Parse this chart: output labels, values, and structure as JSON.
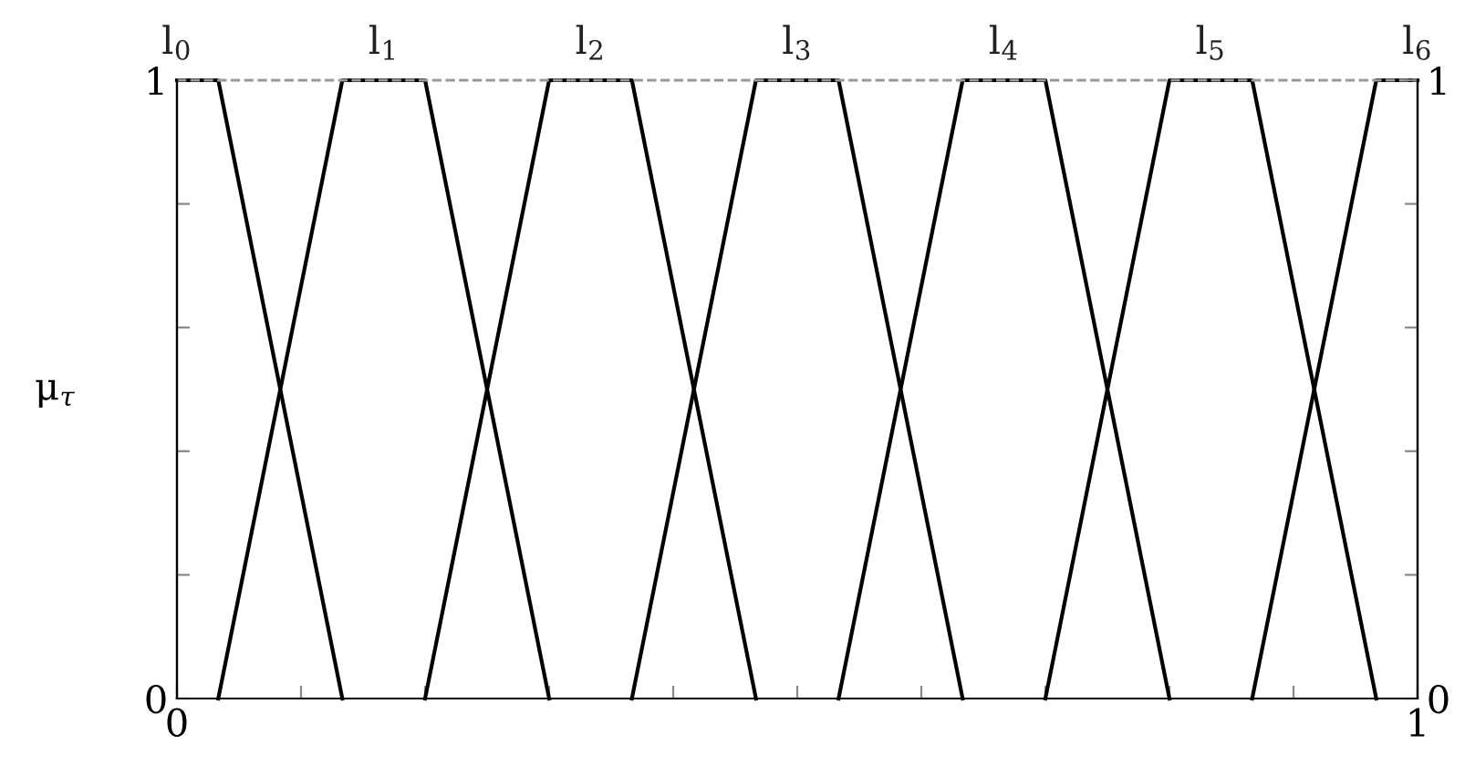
{
  "chart_data": {
    "type": "line",
    "ylabel": "μ$_{τ}$",
    "xlim": [
      0,
      1
    ],
    "ylim": [
      0,
      1
    ],
    "y2lim": [
      0,
      1
    ],
    "xticks": [
      0,
      {
        "value": 0.1,
        "label": null
      },
      {
        "value": 0.2,
        "label": null
      },
      {
        "value": 0.3,
        "label": null
      },
      {
        "value": 0.4,
        "label": null
      },
      {
        "value": 0.5,
        "label": null
      },
      {
        "value": 0.6,
        "label": null
      },
      {
        "value": 0.7,
        "label": null
      },
      {
        "value": 0.8,
        "label": null
      },
      {
        "value": 0.9,
        "label": null
      },
      1
    ],
    "yticks": [
      0,
      {
        "value": 0.2,
        "label": null
      },
      {
        "value": 0.4,
        "label": null
      },
      {
        "value": 0.6,
        "label": null
      },
      {
        "value": 0.8,
        "label": null
      },
      1
    ],
    "y2ticks": [
      0,
      {
        "value": 0.2,
        "label": null
      },
      {
        "value": 0.4,
        "label": null
      },
      {
        "value": 0.6,
        "label": null
      },
      {
        "value": 0.8,
        "label": null
      },
      1
    ],
    "grid": false,
    "legend": false,
    "marker": "none",
    "line_style": "solid",
    "ref_lines": [
      {
        "axis": "y",
        "value": 1,
        "line_style": "dashed",
        "color": "#999999"
      }
    ],
    "series": [
      {
        "name": "l$_{0}$",
        "color": "#000000",
        "x": [
          0,
          0.0333,
          0.1333
        ],
        "values": [
          1,
          1,
          0
        ]
      },
      {
        "name": "l$_{1}$",
        "color": "#000000",
        "x": [
          0.0333,
          0.1333,
          0.2,
          0.3
        ],
        "values": [
          0,
          1,
          1,
          0
        ]
      },
      {
        "name": "l$_{2}$",
        "color": "#000000",
        "x": [
          0.2,
          0.3,
          0.3667,
          0.4667
        ],
        "values": [
          0,
          1,
          1,
          0
        ]
      },
      {
        "name": "l$_{3}$",
        "color": "#000000",
        "x": [
          0.3667,
          0.4667,
          0.5333,
          0.6333
        ],
        "values": [
          0,
          1,
          1,
          0
        ]
      },
      {
        "name": "l$_{4}$",
        "color": "#000000",
        "x": [
          0.5333,
          0.6333,
          0.7,
          0.8
        ],
        "values": [
          0,
          1,
          1,
          0
        ]
      },
      {
        "name": "l$_{5}$",
        "color": "#000000",
        "x": [
          0.7,
          0.8,
          0.8667,
          0.9667
        ],
        "values": [
          0,
          1,
          1,
          0
        ]
      },
      {
        "name": "l$_{6}$",
        "color": "#000000",
        "x": [
          0.8667,
          0.9667,
          1
        ],
        "values": [
          0,
          1,
          1
        ]
      }
    ]
  }
}
